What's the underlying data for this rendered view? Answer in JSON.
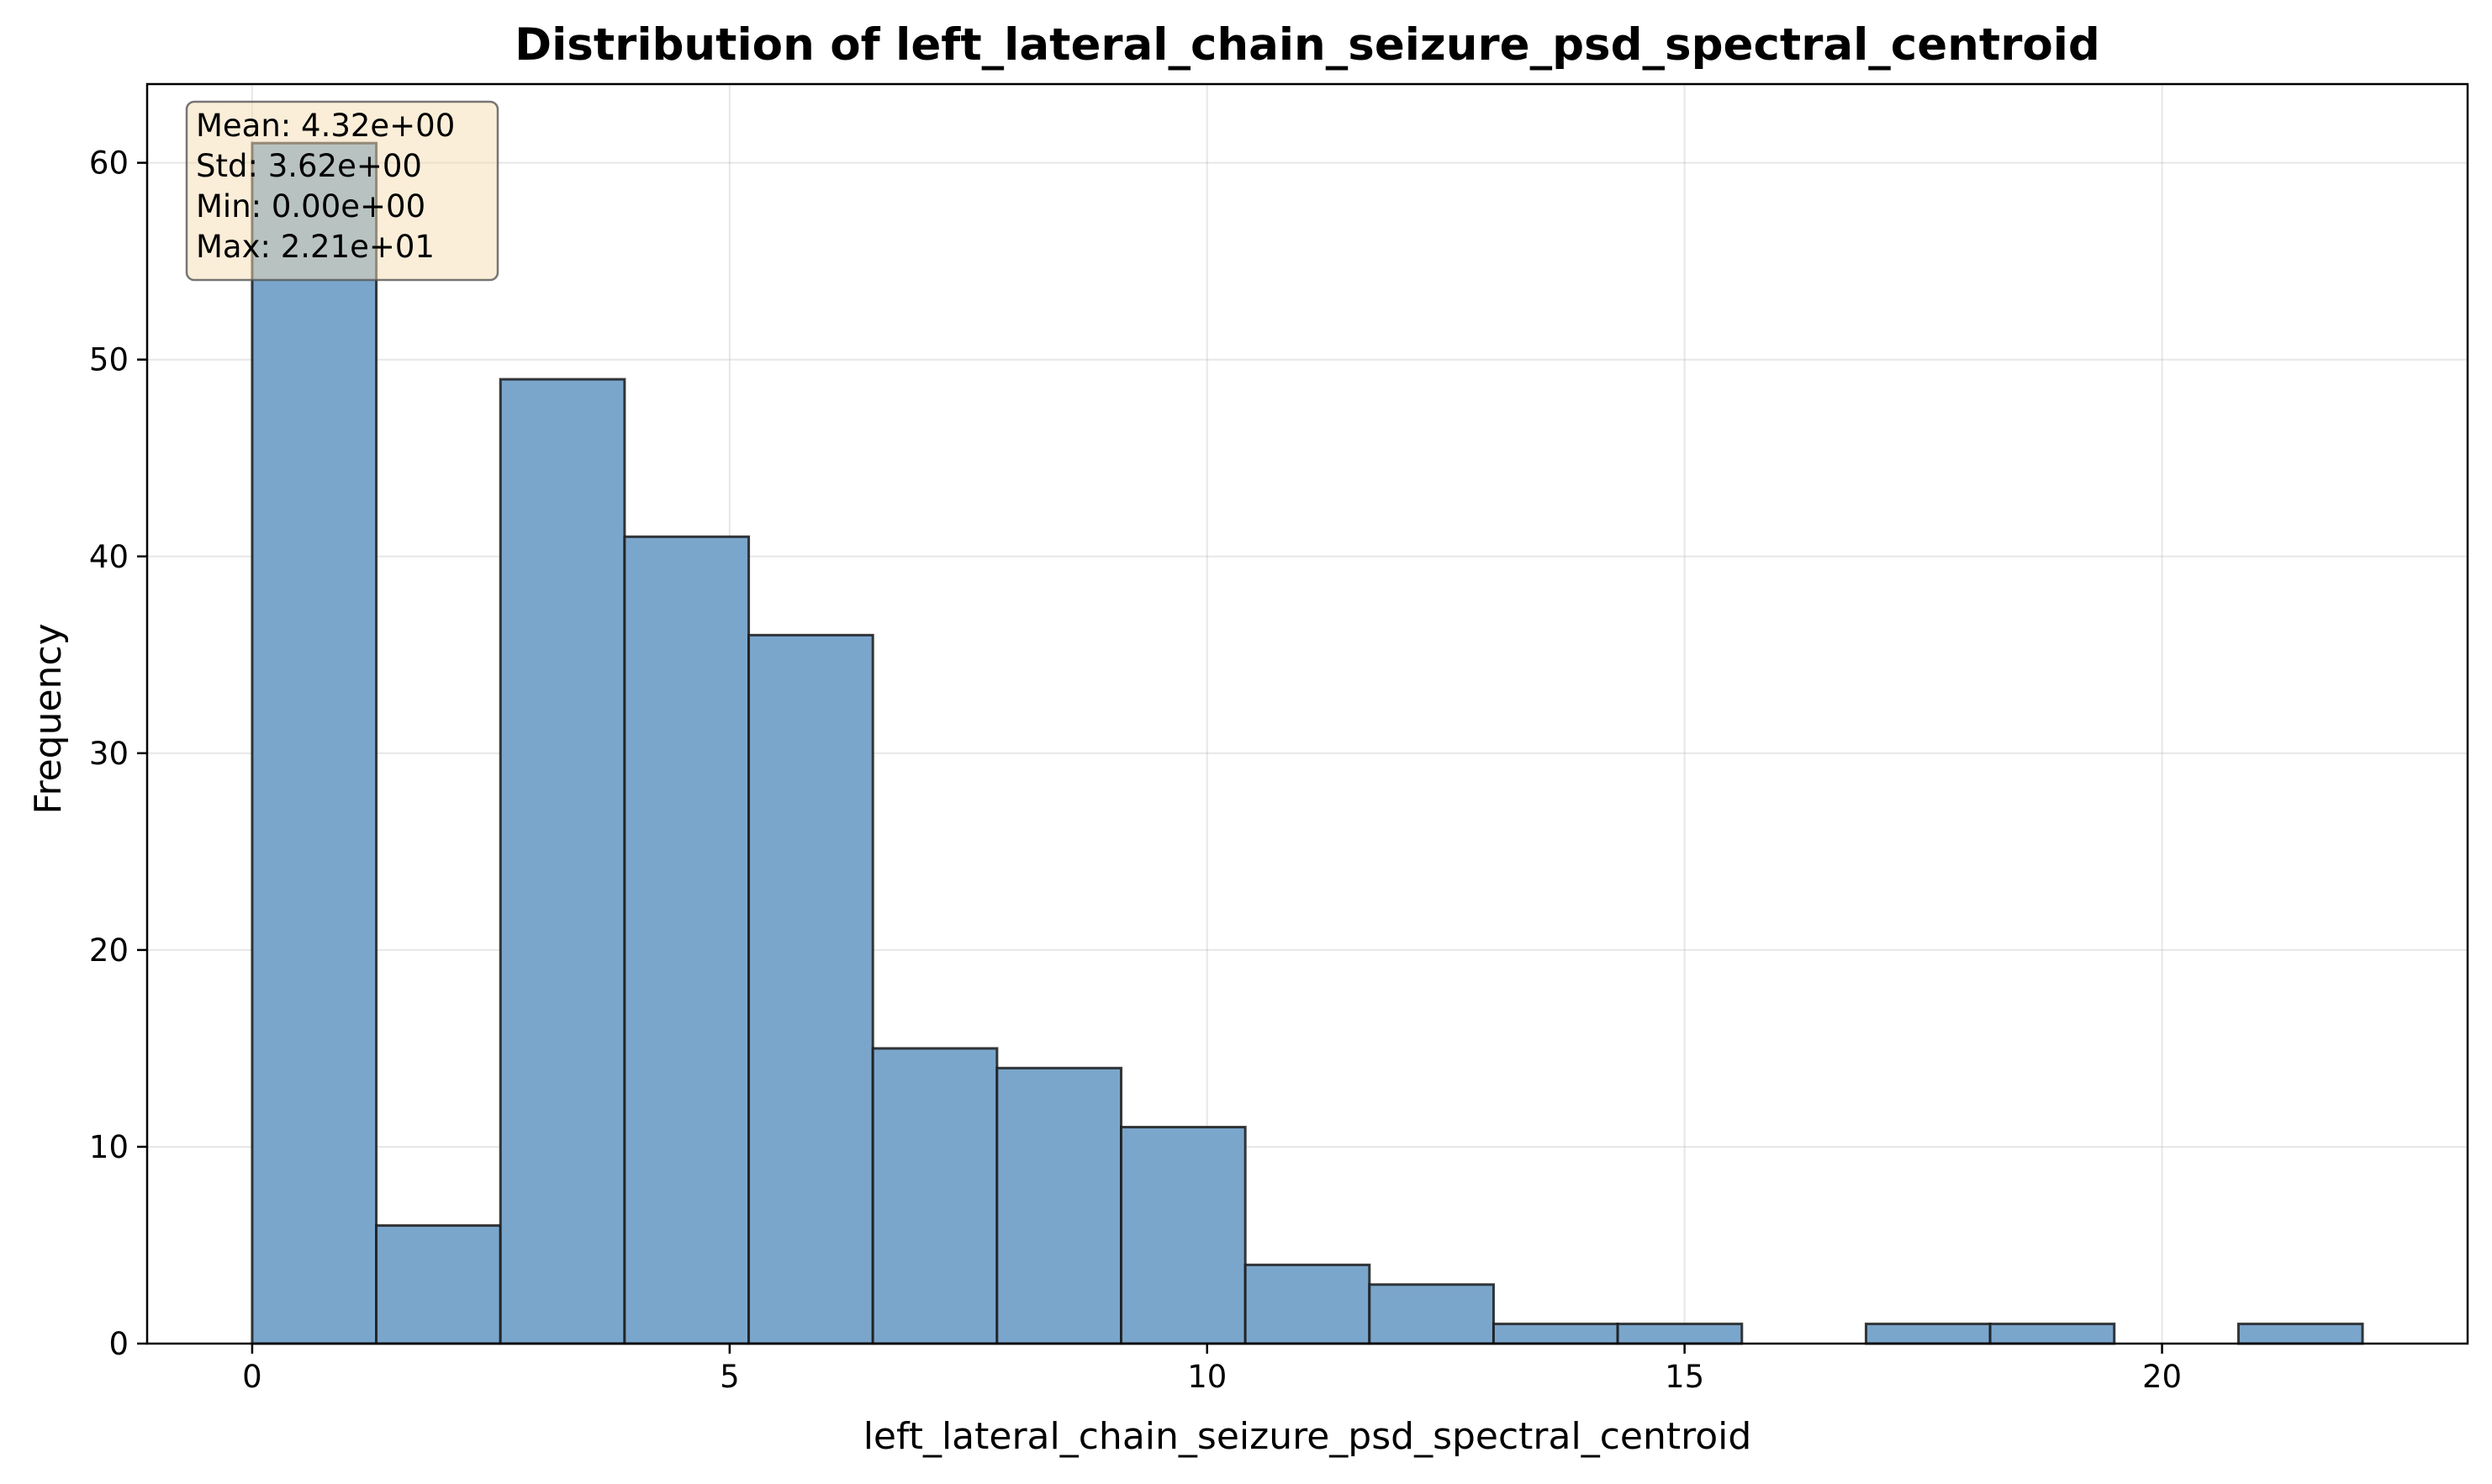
{
  "chart_data": {
    "type": "bar",
    "subtype": "histogram",
    "title": "Distribution of left_lateral_chain_seizure_psd_spectral_centroid",
    "xlabel": "left_lateral_chain_seizure_psd_spectral_centroid",
    "ylabel": "Frequency",
    "xlim": [
      -1.1,
      23.2
    ],
    "ylim": [
      0,
      64
    ],
    "x_ticks": [
      0,
      5,
      10,
      15,
      20
    ],
    "y_ticks": [
      0,
      10,
      20,
      30,
      40,
      50,
      60
    ],
    "grid": true,
    "bin_edges": [
      0.0,
      1.3,
      2.6,
      3.9,
      5.2,
      6.5,
      7.8,
      9.1,
      10.4,
      11.7,
      13.0,
      14.3,
      15.6,
      16.9,
      18.2,
      19.5,
      20.8,
      22.1
    ],
    "counts": [
      61,
      6,
      49,
      41,
      36,
      15,
      14,
      11,
      4,
      3,
      1,
      1,
      0,
      1,
      1,
      0,
      1
    ],
    "bar_color": "#7BA6CC",
    "edge_color": "#1a1a1a",
    "stats_box": {
      "position": "top-left",
      "lines": [
        "Mean: 4.32e+00",
        "Std: 3.62e+00",
        "Min: 0.00e+00",
        "Max: 2.21e+01"
      ],
      "background": "#F5DEB3",
      "border": "#555555"
    }
  }
}
